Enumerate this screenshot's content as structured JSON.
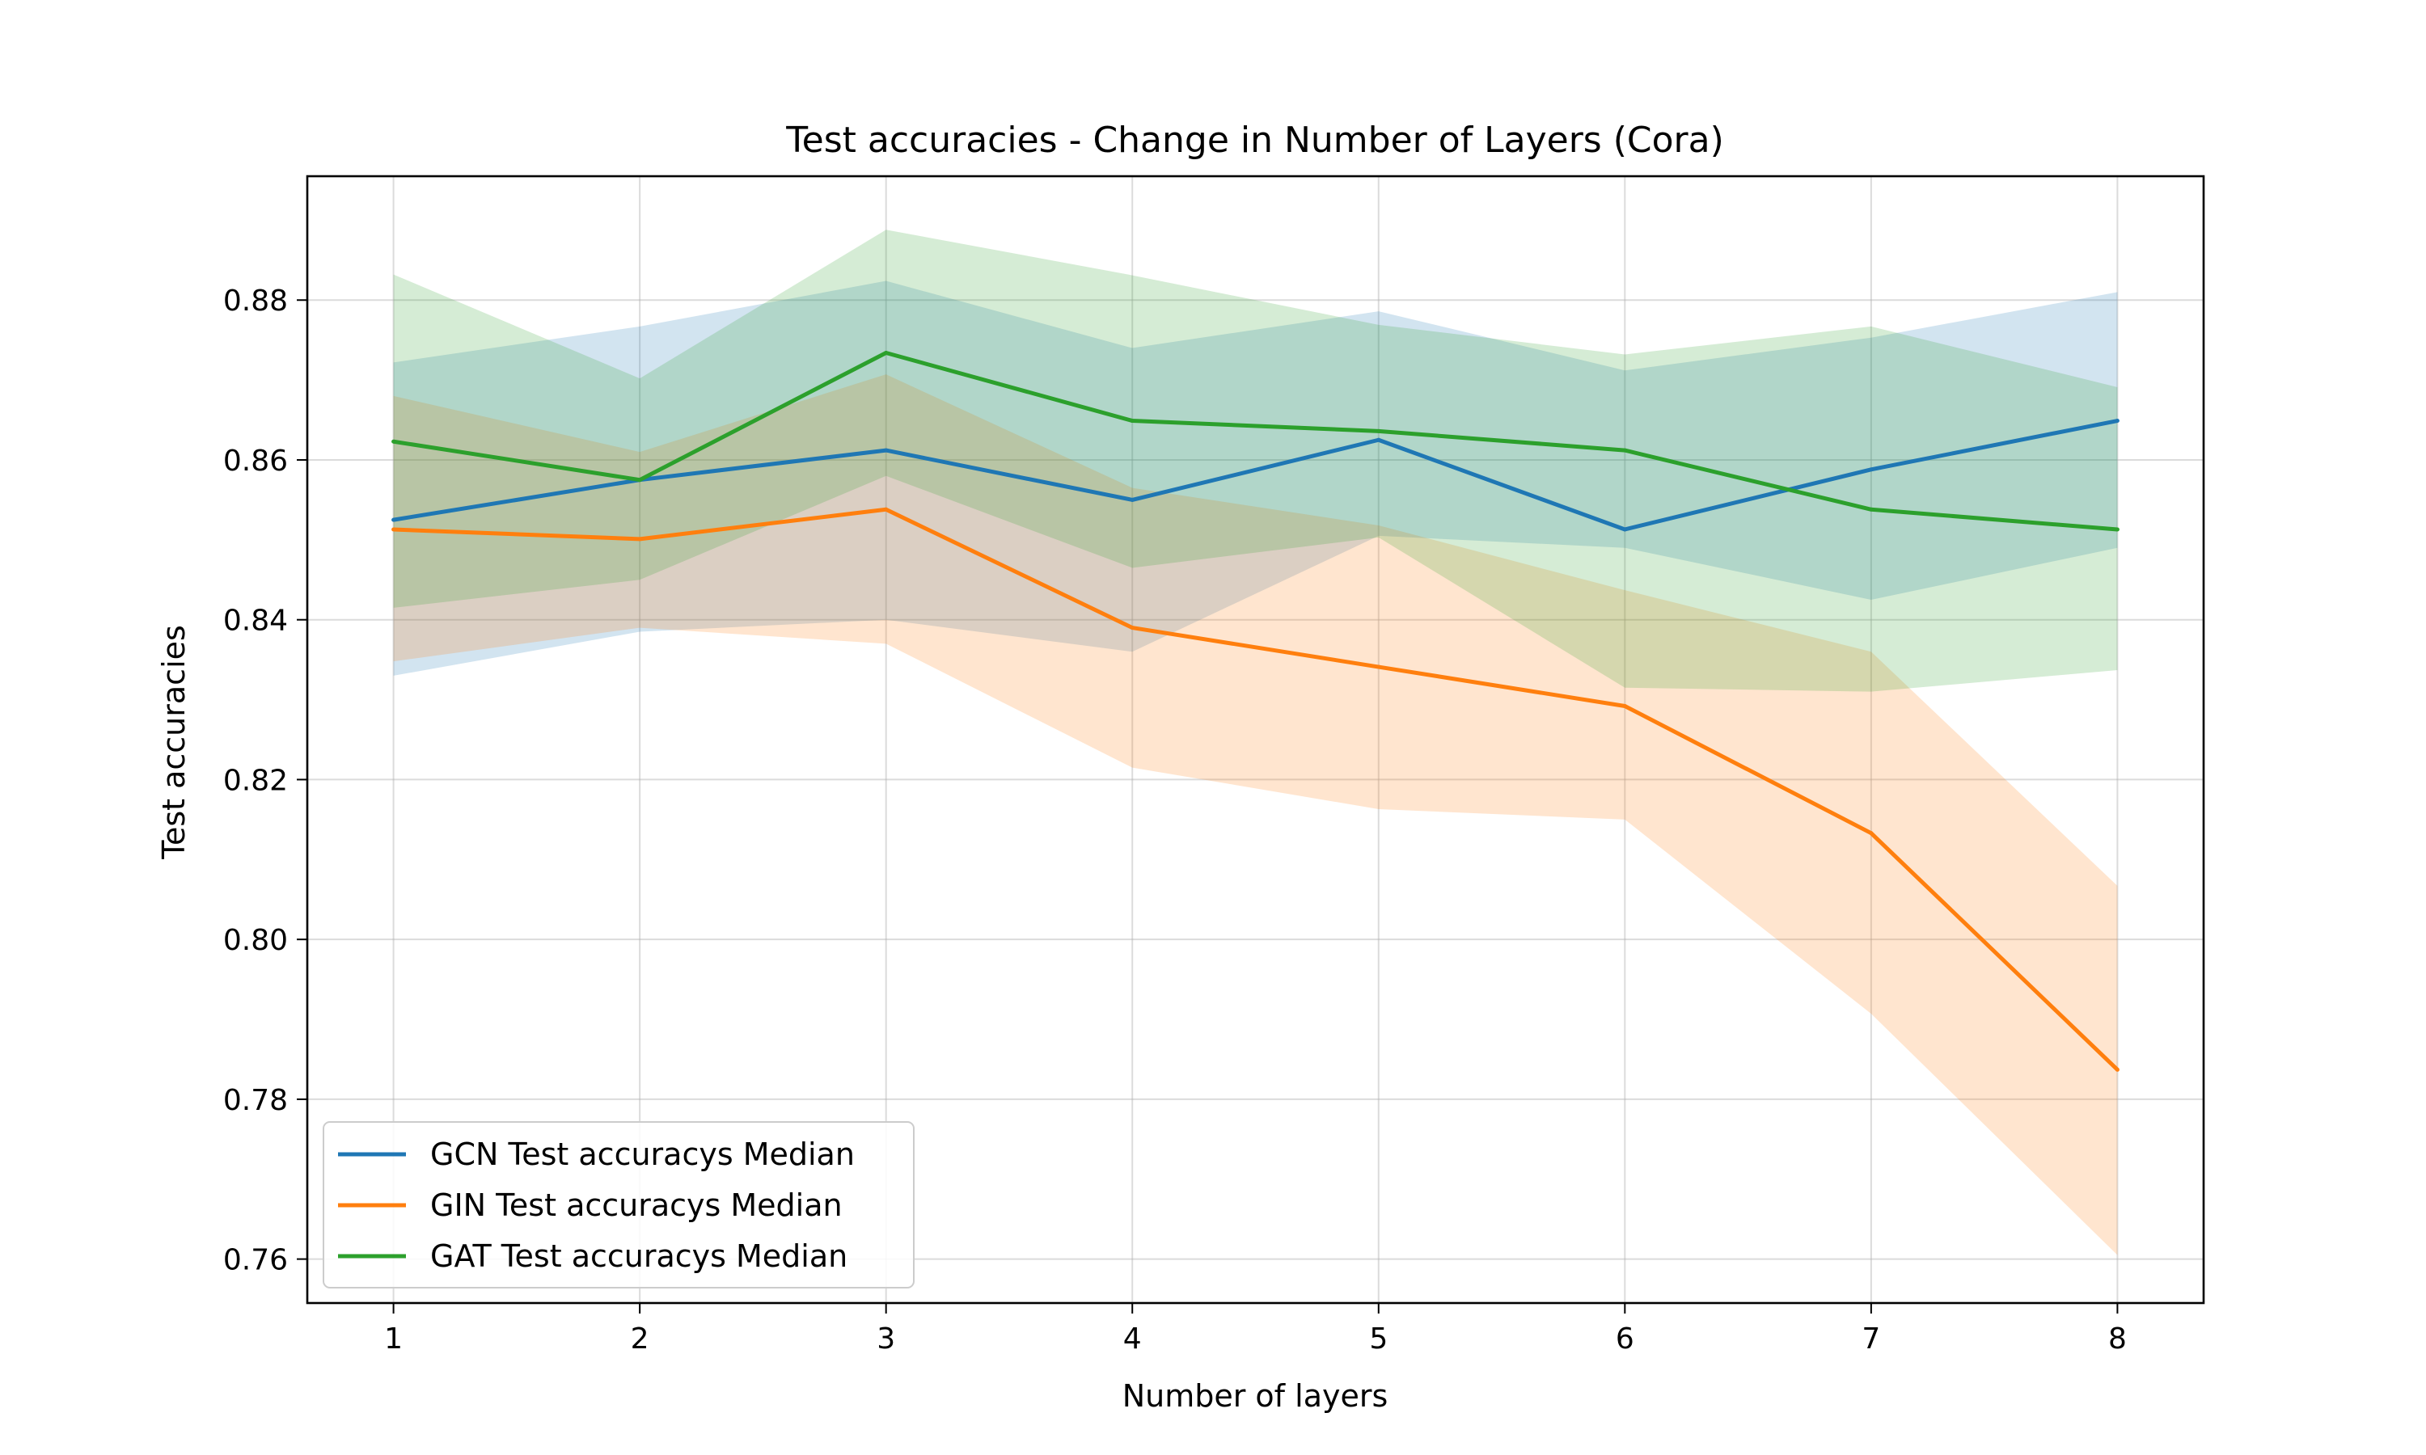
{
  "chart_data": {
    "type": "line",
    "title": "Test accuracies - Change in Number of Layers (Cora)",
    "xlabel": "Number of layers",
    "ylabel": "Test accuracies",
    "x": [
      1,
      2,
      3,
      4,
      5,
      6,
      7,
      8
    ],
    "xticks": [
      "1",
      "2",
      "3",
      "4",
      "5",
      "6",
      "7",
      "8"
    ],
    "yticks": [
      "0.76",
      "0.78",
      "0.80",
      "0.82",
      "0.84",
      "0.86",
      "0.88"
    ],
    "ytick_values": [
      0.76,
      0.78,
      0.8,
      0.82,
      0.84,
      0.86,
      0.88
    ],
    "xlim": [
      0.65,
      8.35
    ],
    "ylim": [
      0.7545,
      0.8955
    ],
    "grid": true,
    "legend_position": "lower-left",
    "series": [
      {
        "name": "GCN Test accuracys Median",
        "color": "#1f77b4",
        "values": [
          0.8525,
          0.8575,
          0.8612,
          0.855,
          0.8625,
          0.8513,
          0.8588,
          0.8649
        ],
        "band_upper": [
          0.8722,
          0.8767,
          0.8824,
          0.874,
          0.8786,
          0.8712,
          0.8753,
          0.881
        ],
        "band_lower": [
          0.833,
          0.8385,
          0.84,
          0.836,
          0.8505,
          0.849,
          0.8425,
          0.849
        ]
      },
      {
        "name": "GIN Test accuracys Median",
        "color": "#ff7f0e",
        "values": [
          0.8513,
          0.8501,
          0.8538,
          0.839,
          0.8341,
          0.8292,
          0.8133,
          0.7837
        ],
        "band_upper": [
          0.868,
          0.861,
          0.8707,
          0.8565,
          0.8518,
          0.8437,
          0.836,
          0.8067
        ],
        "band_lower": [
          0.8348,
          0.839,
          0.837,
          0.8215,
          0.8163,
          0.815,
          0.7907,
          0.7605
        ]
      },
      {
        "name": "GAT Test accuracys Median",
        "color": "#2ca02c",
        "values": [
          0.8623,
          0.8575,
          0.8734,
          0.8649,
          0.8636,
          0.8612,
          0.8538,
          0.8513
        ],
        "band_upper": [
          0.8832,
          0.8702,
          0.8888,
          0.8831,
          0.8769,
          0.8732,
          0.8767,
          0.8691
        ],
        "band_lower": [
          0.8415,
          0.845,
          0.858,
          0.8465,
          0.8503,
          0.8315,
          0.831,
          0.8337
        ]
      }
    ]
  }
}
